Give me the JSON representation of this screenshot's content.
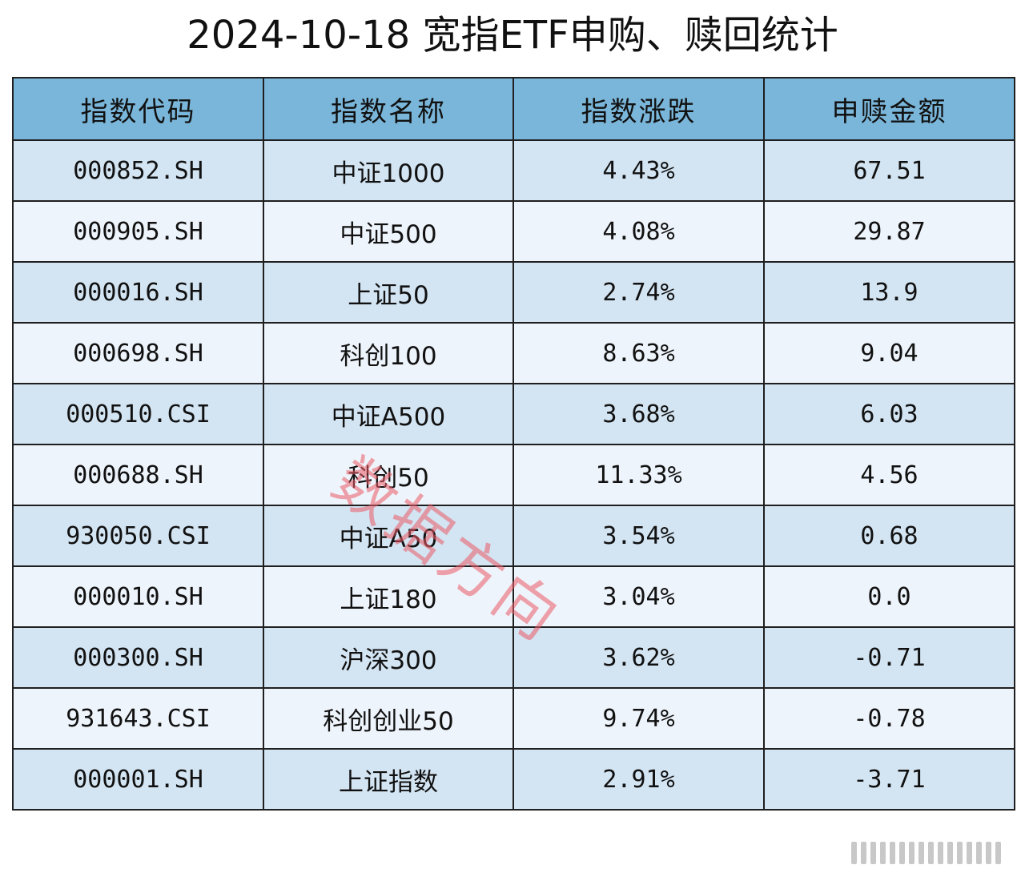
{
  "title": "2024-10-18 宽指ETF申购、赎回统计",
  "table": {
    "headers": [
      "指数代码",
      "指数名称",
      "指数涨跌",
      "申赎金额"
    ],
    "rows": [
      [
        "000852.SH",
        "中证1000",
        "4.43%",
        "67.51"
      ],
      [
        "000905.SH",
        "中证500",
        "4.08%",
        "29.87"
      ],
      [
        "000016.SH",
        "上证50",
        "2.74%",
        "13.9"
      ],
      [
        "000698.SH",
        "科创100",
        "8.63%",
        "9.04"
      ],
      [
        "000510.CSI",
        "中证A500",
        "3.68%",
        "6.03"
      ],
      [
        "000688.SH",
        "科创50",
        "11.33%",
        "4.56"
      ],
      [
        "930050.CSI",
        "中证A50",
        "3.54%",
        "0.68"
      ],
      [
        "000010.SH",
        "上证180",
        "3.04%",
        "0.0"
      ],
      [
        "000300.SH",
        "沪深300",
        "3.62%",
        "-0.71"
      ],
      [
        "931643.CSI",
        "科创创业50",
        "9.74%",
        "-0.78"
      ],
      [
        "000001.SH",
        "上证指数",
        "2.91%",
        "-3.71"
      ]
    ]
  },
  "watermark": "数据方向",
  "colors": {
    "header_bg": "#7ab6da",
    "row_odd_bg": "#d3e4f2",
    "row_even_bg": "#eef4fb",
    "border": "#1f1f1f",
    "watermark": "#eb5a64"
  }
}
